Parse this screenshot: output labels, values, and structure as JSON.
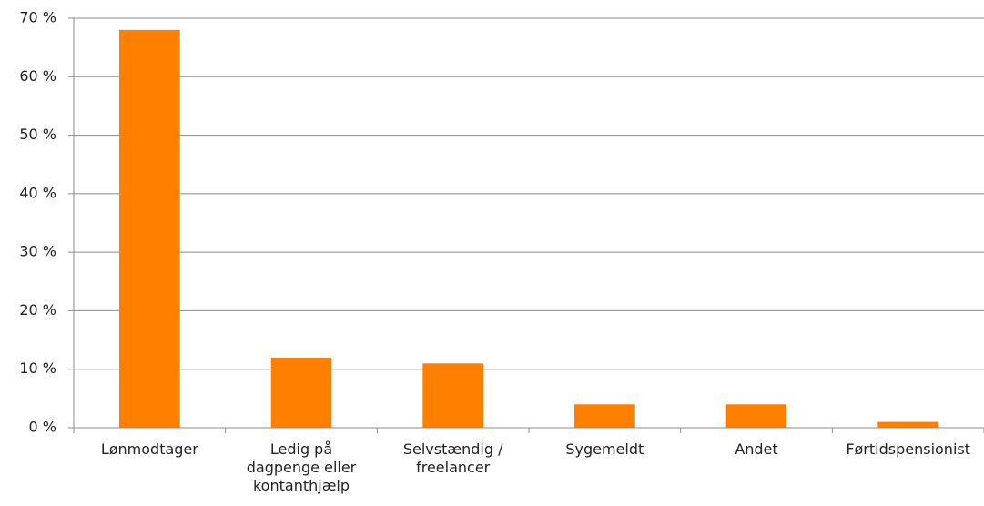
{
  "chart_data": {
    "type": "bar",
    "categories": [
      "Lønmodtager",
      "Ledig på dagpenge eller kontanthjælp",
      "Selvstændig / freelancer",
      "Sygemeldt",
      "Andet",
      "Førtidspensionist"
    ],
    "values": [
      68,
      12,
      11,
      4,
      4,
      1
    ],
    "color": "#ff8000",
    "ylim": [
      0,
      70
    ],
    "yticks": [
      {
        "value": 0,
        "label": "0 %"
      },
      {
        "value": 10,
        "label": "10 %"
      },
      {
        "value": 20,
        "label": "20 %"
      },
      {
        "value": 30,
        "label": "30 %"
      },
      {
        "value": 40,
        "label": "40 %"
      },
      {
        "value": 50,
        "label": "50 %"
      },
      {
        "value": 60,
        "label": "60 %"
      },
      {
        "value": 70,
        "label": "70 %"
      }
    ],
    "grid": true
  }
}
